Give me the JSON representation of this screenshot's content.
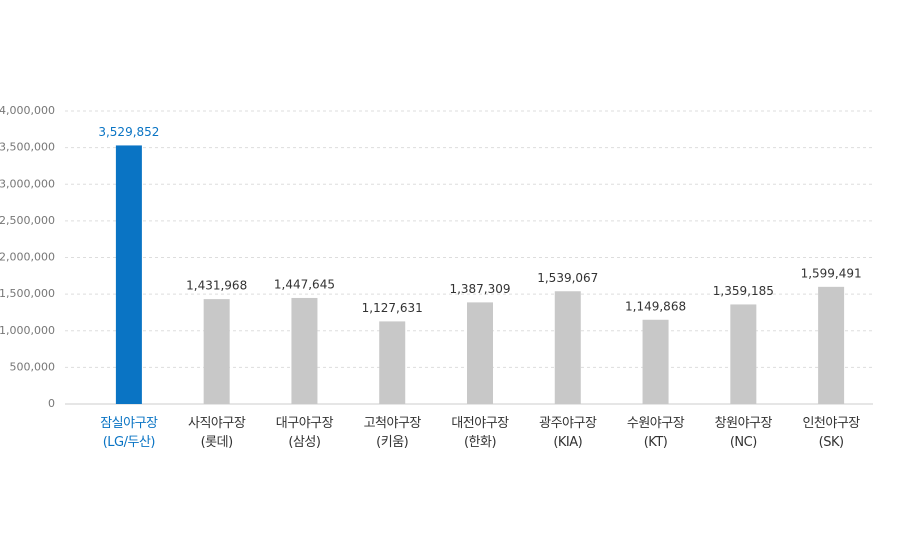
{
  "chart_data": {
    "type": "bar",
    "categories": [
      "잠실야구장\n(LG/두산)",
      "사직야구장\n(롯데)",
      "대구야구장\n(삼성)",
      "고척야구장\n(키움)",
      "대전야구장\n(한화)",
      "광주야구장\n(KIA)",
      "수원야구장\n(KT)",
      "창원야구장\n(NC)",
      "인천야구장\n(SK)"
    ],
    "values": [
      3529852,
      1431968,
      1447645,
      1127631,
      1387309,
      1539067,
      1149868,
      1359185,
      1599491
    ],
    "value_labels": [
      "3,529,852",
      "1,431,968",
      "1,447,645",
      "1,127,631",
      "1,387,309",
      "1,539,067",
      "1,149,868",
      "1,359,185",
      "1,599,491"
    ],
    "colors": [
      "#0a74c4",
      "#c8c8c8",
      "#c8c8c8",
      "#c8c8c8",
      "#c8c8c8",
      "#c8c8c8",
      "#c8c8c8",
      "#c8c8c8",
      "#c8c8c8"
    ],
    "ylim": [
      0,
      4000000
    ],
    "yticks": [
      0,
      {
        "value": 500000,
        "label": "500,000"
      },
      {
        "value": 1000000,
        "label": "1,000,000"
      },
      {
        "value": 1500000,
        "label": "1,500,000"
      },
      {
        "value": 2000000,
        "label": "2,000,000"
      },
      {
        "value": 2500000,
        "label": "2,500,000"
      },
      {
        "value": 3000000,
        "label": "3,000,000"
      },
      {
        "value": 3500000,
        "label": "3,500,000"
      },
      {
        "value": 4000000,
        "label": "4,000,000"
      }
    ],
    "grid": true
  }
}
